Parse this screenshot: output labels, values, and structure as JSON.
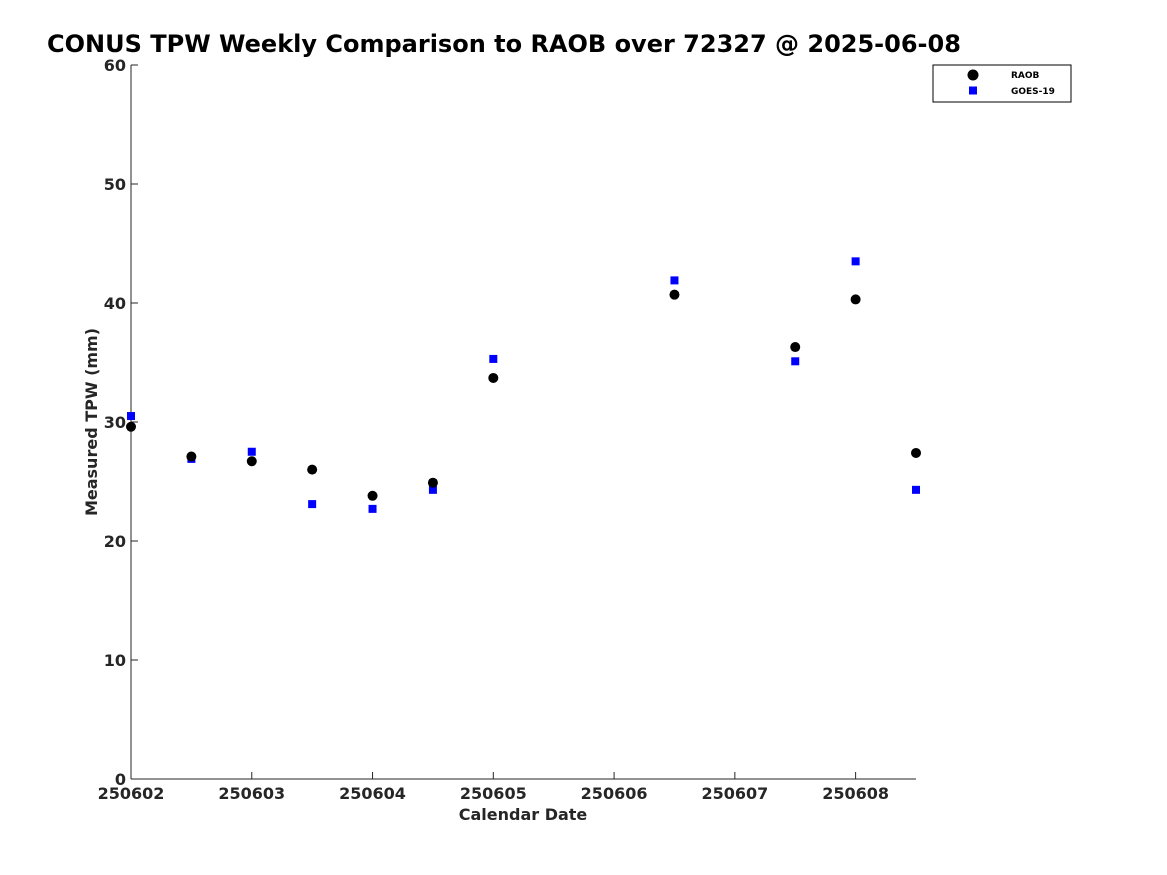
{
  "chart_data": {
    "type": "scatter",
    "title": "CONUS TPW Weekly Comparison to RAOB over 72327 @ 2025-06-08",
    "xlabel": "Calendar Date",
    "ylabel": "Measured TPW (mm)",
    "xlim": [
      250602,
      250608.5
    ],
    "ylim": [
      0,
      60
    ],
    "xticks": [
      250602,
      250603,
      250604,
      250605,
      250606,
      250607,
      250608
    ],
    "xtick_labels": [
      "250602",
      "250603",
      "250604",
      "250605",
      "250606",
      "250607",
      "250608"
    ],
    "yticks": [
      0,
      10,
      20,
      30,
      40,
      50,
      60
    ],
    "ytick_labels": [
      "0",
      "10",
      "20",
      "30",
      "40",
      "50",
      "60"
    ],
    "grid": false,
    "legend_position": "top-right",
    "series": [
      {
        "name": "RAOB",
        "marker": "circle",
        "color": "#000000",
        "x": [
          250602,
          250602.5,
          250603,
          250603.5,
          250604,
          250604.5,
          250605,
          250606.5,
          250607.5,
          250608,
          250608.5
        ],
        "y": [
          29.6,
          27.1,
          26.7,
          26.0,
          23.8,
          24.9,
          33.7,
          40.7,
          36.3,
          40.3,
          27.4
        ]
      },
      {
        "name": "GOES-19",
        "marker": "square",
        "color": "#0000ff",
        "x": [
          250602,
          250602.5,
          250603,
          250603.5,
          250604,
          250604.5,
          250605,
          250606.5,
          250607.5,
          250608,
          250608.5
        ],
        "y": [
          30.5,
          26.9,
          27.5,
          23.1,
          22.7,
          24.3,
          35.3,
          41.9,
          35.1,
          43.5,
          24.3
        ]
      }
    ]
  }
}
